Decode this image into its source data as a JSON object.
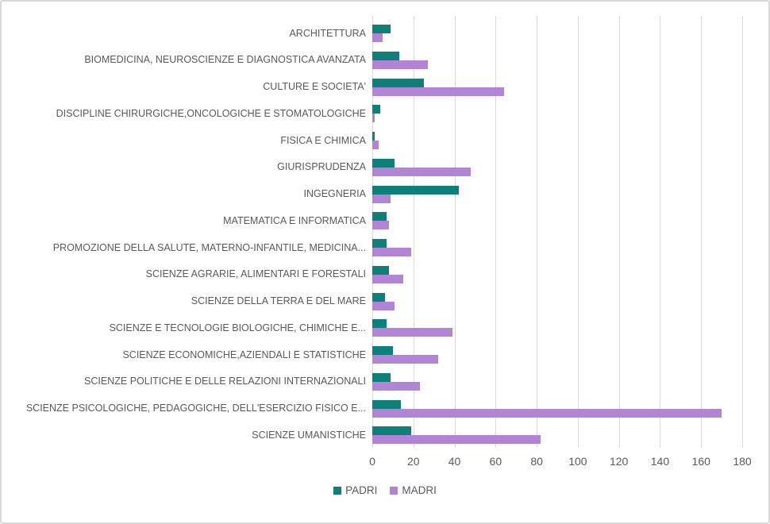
{
  "chart_data": {
    "type": "bar",
    "orientation": "horizontal",
    "title": "",
    "xlabel": "",
    "ylabel": "",
    "categories": [
      "ARCHITETTURA",
      "BIOMEDICINA, NEUROSCIENZE E DIAGNOSTICA AVANZATA",
      "CULTURE E SOCIETA'",
      "DISCIPLINE CHIRURGICHE,ONCOLOGICHE E STOMATOLOGICHE",
      "FISICA E CHIMICA",
      "GIURISPRUDENZA",
      "INGEGNERIA",
      "MATEMATICA E INFORMATICA",
      "PROMOZIONE DELLA SALUTE, MATERNO-INFANTILE, MEDICINA...",
      "SCIENZE AGRARIE, ALIMENTARI E FORESTALI",
      "SCIENZE DELLA TERRA E DEL MARE",
      "SCIENZE E TECNOLOGIE BIOLOGICHE, CHIMICHE E...",
      "SCIENZE ECONOMICHE,AZIENDALI E STATISTICHE",
      "SCIENZE POLITICHE E DELLE RELAZIONI INTERNAZIONALI",
      "SCIENZE PSICOLOGICHE, PEDAGOGICHE, DELL'ESERCIZIO FISICO E...",
      "SCIENZE UMANISTICHE"
    ],
    "series": [
      {
        "name": "PADRI",
        "color": "#0E7F79",
        "values": [
          9,
          13,
          25,
          4,
          1,
          11,
          42,
          7,
          7,
          8,
          6,
          7,
          10,
          9,
          14,
          19
        ]
      },
      {
        "name": "MADRI",
        "color": "#B184D6",
        "values": [
          5,
          27,
          64,
          1,
          3,
          48,
          9,
          8,
          19,
          15,
          11,
          39,
          32,
          23,
          170,
          82
        ]
      }
    ],
    "x_axis": {
      "min": 0,
      "max": 180,
      "step": 20,
      "tick_labels": [
        "0",
        "20",
        "40",
        "60",
        "80",
        "100",
        "120",
        "140",
        "160",
        "180"
      ]
    },
    "legend": {
      "position": "bottom",
      "entries": [
        "PADRI",
        "MADRI"
      ]
    },
    "grid": true,
    "colors": {
      "gridline": "#D9D9D9",
      "axis_text": "#595959",
      "category_text": "#595959",
      "background": "#FFFFFF",
      "border": "#D9D9D9"
    }
  }
}
